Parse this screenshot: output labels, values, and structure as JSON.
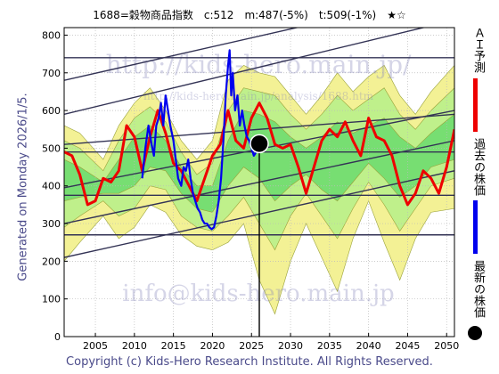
{
  "header": {
    "ticker": "1688=穀物商品指数",
    "current": "c:512",
    "medium": "m:487(-5%)",
    "trend": "t:509(-1%)",
    "stars": "★☆"
  },
  "generated": "Generated on Monday 2026/1/5.",
  "copyright": "Copyright (c) Kids-Hero Research Institute. All Rights Reserved.",
  "watermarks": [
    "http://kids-hero.main.jp/",
    "http://kids-hero.main.jp/analysis/1688.htm",
    "info@kids-hero.main.jp"
  ],
  "legend": [
    {
      "label": "ＡＩ予測",
      "color": "#ee0000"
    },
    {
      "label": "過去の株価",
      "color": "#0000ee"
    },
    {
      "label": "最新の株価",
      "color": "#000000"
    }
  ],
  "colors": {
    "prediction": "#ee0000",
    "history": "#0000ee",
    "latest": "#000000",
    "band_outer": "#f2f08a",
    "band_mid": "#b9ef8a",
    "band_inner": "#6fdc6f",
    "lines": "#333355"
  },
  "chart_data": {
    "type": "line",
    "xlim": [
      2001,
      2051
    ],
    "ylim": [
      0,
      820
    ],
    "x_ticks": [
      2005,
      2010,
      2015,
      2020,
      2025,
      2030,
      2035,
      2040,
      2045,
      2050
    ],
    "y_ticks": [
      0,
      100,
      200,
      300,
      400,
      500,
      600,
      700,
      800
    ],
    "grid": true,
    "horizontal_levels": [
      270,
      375,
      490,
      740
    ],
    "trend_lines": [
      {
        "x": [
          2001,
          2051
        ],
        "y": [
          210,
          440
        ]
      },
      {
        "x": [
          2001,
          2051
        ],
        "y": [
          300,
          520
        ]
      },
      {
        "x": [
          2001,
          2051
        ],
        "y": [
          395,
          600
        ]
      },
      {
        "x": [
          2001,
          2051
        ],
        "y": [
          510,
          590
        ]
      },
      {
        "x": [
          2001,
          2051
        ],
        "y": [
          590,
          840
        ]
      },
      {
        "x": [
          2001,
          2051
        ],
        "y": [
          680,
          915
        ]
      }
    ],
    "band_outer_upper": [
      [
        2001,
        560
      ],
      [
        2003,
        540
      ],
      [
        2006,
        470
      ],
      [
        2008,
        560
      ],
      [
        2010,
        620
      ],
      [
        2012,
        660
      ],
      [
        2014,
        600
      ],
      [
        2016,
        520
      ],
      [
        2018,
        470
      ],
      [
        2020,
        520
      ],
      [
        2022,
        680
      ],
      [
        2024,
        720
      ],
      [
        2026,
        700
      ],
      [
        2028,
        690
      ],
      [
        2030,
        640
      ],
      [
        2032,
        590
      ],
      [
        2034,
        640
      ],
      [
        2036,
        700
      ],
      [
        2038,
        650
      ],
      [
        2040,
        690
      ],
      [
        2042,
        720
      ],
      [
        2044,
        640
      ],
      [
        2046,
        590
      ],
      [
        2048,
        650
      ],
      [
        2051,
        720
      ]
    ],
    "band_outer_lower": [
      [
        2001,
        200
      ],
      [
        2003,
        250
      ],
      [
        2006,
        320
      ],
      [
        2008,
        260
      ],
      [
        2010,
        290
      ],
      [
        2012,
        350
      ],
      [
        2014,
        330
      ],
      [
        2016,
        270
      ],
      [
        2018,
        240
      ],
      [
        2020,
        230
      ],
      [
        2022,
        250
      ],
      [
        2024,
        300
      ],
      [
        2026,
        150
      ],
      [
        2028,
        60
      ],
      [
        2030,
        200
      ],
      [
        2032,
        300
      ],
      [
        2034,
        210
      ],
      [
        2036,
        120
      ],
      [
        2038,
        260
      ],
      [
        2040,
        360
      ],
      [
        2042,
        250
      ],
      [
        2044,
        150
      ],
      [
        2046,
        260
      ],
      [
        2048,
        330
      ],
      [
        2051,
        340
      ]
    ],
    "band_mid_upper": [
      [
        2001,
        520
      ],
      [
        2003,
        500
      ],
      [
        2006,
        440
      ],
      [
        2008,
        520
      ],
      [
        2010,
        580
      ],
      [
        2012,
        610
      ],
      [
        2014,
        570
      ],
      [
        2016,
        490
      ],
      [
        2018,
        430
      ],
      [
        2020,
        460
      ],
      [
        2022,
        600
      ],
      [
        2024,
        660
      ],
      [
        2026,
        650
      ],
      [
        2028,
        640
      ],
      [
        2030,
        590
      ],
      [
        2032,
        550
      ],
      [
        2034,
        590
      ],
      [
        2036,
        640
      ],
      [
        2038,
        600
      ],
      [
        2040,
        630
      ],
      [
        2042,
        660
      ],
      [
        2044,
        590
      ],
      [
        2046,
        550
      ],
      [
        2048,
        600
      ],
      [
        2051,
        660
      ]
    ],
    "band_mid_lower": [
      [
        2001,
        290
      ],
      [
        2003,
        320
      ],
      [
        2006,
        360
      ],
      [
        2008,
        320
      ],
      [
        2010,
        340
      ],
      [
        2012,
        400
      ],
      [
        2014,
        390
      ],
      [
        2016,
        320
      ],
      [
        2018,
        290
      ],
      [
        2020,
        280
      ],
      [
        2022,
        320
      ],
      [
        2024,
        370
      ],
      [
        2026,
        300
      ],
      [
        2028,
        230
      ],
      [
        2030,
        320
      ],
      [
        2032,
        380
      ],
      [
        2034,
        320
      ],
      [
        2036,
        260
      ],
      [
        2038,
        340
      ],
      [
        2040,
        410
      ],
      [
        2042,
        350
      ],
      [
        2044,
        280
      ],
      [
        2046,
        340
      ],
      [
        2048,
        400
      ],
      [
        2051,
        420
      ]
    ],
    "band_inner_upper": [
      [
        2001,
        470
      ],
      [
        2003,
        450
      ],
      [
        2006,
        410
      ],
      [
        2008,
        470
      ],
      [
        2010,
        530
      ],
      [
        2012,
        560
      ],
      [
        2014,
        520
      ],
      [
        2016,
        450
      ],
      [
        2018,
        400
      ],
      [
        2020,
        400
      ],
      [
        2022,
        520
      ],
      [
        2024,
        600
      ],
      [
        2026,
        590
      ],
      [
        2028,
        570
      ],
      [
        2030,
        530
      ],
      [
        2032,
        500
      ],
      [
        2034,
        530
      ],
      [
        2036,
        570
      ],
      [
        2038,
        540
      ],
      [
        2040,
        560
      ],
      [
        2042,
        580
      ],
      [
        2044,
        530
      ],
      [
        2046,
        500
      ],
      [
        2048,
        540
      ],
      [
        2051,
        590
      ]
    ],
    "band_inner_lower": [
      [
        2001,
        360
      ],
      [
        2003,
        370
      ],
      [
        2006,
        380
      ],
      [
        2008,
        380
      ],
      [
        2010,
        400
      ],
      [
        2012,
        450
      ],
      [
        2014,
        440
      ],
      [
        2016,
        380
      ],
      [
        2018,
        340
      ],
      [
        2020,
        330
      ],
      [
        2022,
        400
      ],
      [
        2024,
        450
      ],
      [
        2026,
        420
      ],
      [
        2028,
        360
      ],
      [
        2030,
        400
      ],
      [
        2032,
        430
      ],
      [
        2034,
        390
      ],
      [
        2036,
        360
      ],
      [
        2038,
        410
      ],
      [
        2040,
        460
      ],
      [
        2042,
        420
      ],
      [
        2044,
        370
      ],
      [
        2046,
        400
      ],
      [
        2048,
        450
      ],
      [
        2051,
        470
      ]
    ],
    "history": [
      [
        2011,
        420
      ],
      [
        2011.4,
        500
      ],
      [
        2011.8,
        560
      ],
      [
        2012.2,
        510
      ],
      [
        2012.5,
        480
      ],
      [
        2012.8,
        560
      ],
      [
        2013.1,
        580
      ],
      [
        2013.4,
        620
      ],
      [
        2013.7,
        560
      ],
      [
        2014,
        640
      ],
      [
        2014.3,
        600
      ],
      [
        2014.6,
        560
      ],
      [
        2015,
        520
      ],
      [
        2015.3,
        470
      ],
      [
        2015.6,
        420
      ],
      [
        2016,
        400
      ],
      [
        2016.3,
        450
      ],
      [
        2016.6,
        440
      ],
      [
        2016.9,
        470
      ],
      [
        2017.2,
        420
      ],
      [
        2017.5,
        380
      ],
      [
        2017.8,
        360
      ],
      [
        2018.1,
        340
      ],
      [
        2018.4,
        330
      ],
      [
        2018.7,
        310
      ],
      [
        2019,
        300
      ],
      [
        2019.3,
        300
      ],
      [
        2019.6,
        290
      ],
      [
        2019.9,
        285
      ],
      [
        2020.2,
        290
      ],
      [
        2020.5,
        320
      ],
      [
        2020.8,
        360
      ],
      [
        2021.1,
        420
      ],
      [
        2021.4,
        520
      ],
      [
        2021.7,
        640
      ],
      [
        2022,
        720
      ],
      [
        2022.2,
        760
      ],
      [
        2022.4,
        640
      ],
      [
        2022.6,
        700
      ],
      [
        2022.9,
        600
      ],
      [
        2023.2,
        640
      ],
      [
        2023.5,
        560
      ],
      [
        2023.8,
        600
      ],
      [
        2024.1,
        560
      ],
      [
        2024.4,
        530
      ],
      [
        2024.7,
        520
      ],
      [
        2025,
        500
      ],
      [
        2025.3,
        480
      ],
      [
        2025.6,
        490
      ],
      [
        2025.9,
        500
      ],
      [
        2026,
        512
      ]
    ],
    "prediction": [
      [
        2001,
        490
      ],
      [
        2002,
        480
      ],
      [
        2003,
        430
      ],
      [
        2004,
        350
      ],
      [
        2005,
        360
      ],
      [
        2006,
        420
      ],
      [
        2007,
        410
      ],
      [
        2008,
        440
      ],
      [
        2009,
        560
      ],
      [
        2010,
        530
      ],
      [
        2011,
        440
      ],
      [
        2012,
        530
      ],
      [
        2013,
        600
      ],
      [
        2014,
        540
      ],
      [
        2015,
        460
      ],
      [
        2016,
        440
      ],
      [
        2017,
        400
      ],
      [
        2018,
        360
      ],
      [
        2019,
        420
      ],
      [
        2020,
        480
      ],
      [
        2021,
        510
      ],
      [
        2022,
        600
      ],
      [
        2023,
        520
      ],
      [
        2024,
        500
      ],
      [
        2025,
        580
      ],
      [
        2026,
        620
      ],
      [
        2027,
        580
      ],
      [
        2028,
        510
      ],
      [
        2029,
        500
      ],
      [
        2030,
        510
      ],
      [
        2031,
        450
      ],
      [
        2032,
        380
      ],
      [
        2033,
        450
      ],
      [
        2034,
        520
      ],
      [
        2035,
        550
      ],
      [
        2036,
        530
      ],
      [
        2037,
        570
      ],
      [
        2038,
        520
      ],
      [
        2039,
        480
      ],
      [
        2040,
        580
      ],
      [
        2041,
        530
      ],
      [
        2042,
        520
      ],
      [
        2043,
        480
      ],
      [
        2044,
        400
      ],
      [
        2045,
        350
      ],
      [
        2046,
        380
      ],
      [
        2047,
        440
      ],
      [
        2048,
        420
      ],
      [
        2049,
        380
      ],
      [
        2050,
        450
      ],
      [
        2051,
        550
      ]
    ],
    "latest": {
      "x": 2026,
      "y": 512
    }
  }
}
